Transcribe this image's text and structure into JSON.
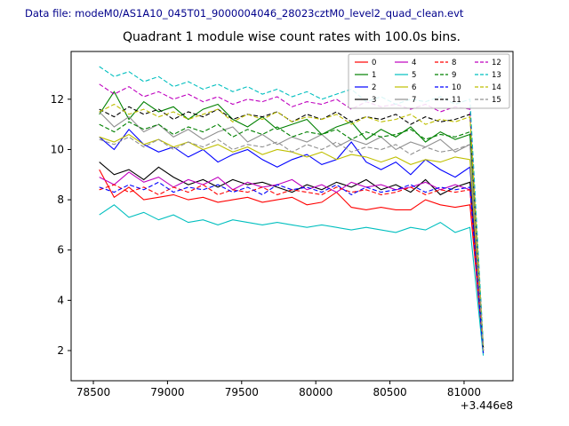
{
  "header": {
    "text": "Data file: modeM0/AS1A10_045T01_9000004046_28023cztM0_level2_quad_clean.evt",
    "color": "#00008b"
  },
  "chart_data": {
    "type": "line",
    "title": "Quadrant 1 module wise count rates with 100.0s bins.",
    "xlabel": "",
    "ylabel": "",
    "x_offset_label": "+3.446e8",
    "xlim": [
      78350,
      81330
    ],
    "ylim": [
      0.8,
      13.9
    ],
    "xticks": [
      78500,
      79000,
      79500,
      80000,
      80500,
      81000
    ],
    "yticks": [
      2,
      4,
      6,
      8,
      10,
      12
    ],
    "grid": false,
    "legend": {
      "location": "upper right",
      "ncol": 4
    },
    "x": [
      78540,
      78640,
      78740,
      78840,
      78940,
      79040,
      79140,
      79240,
      79340,
      79440,
      79540,
      79640,
      79740,
      79840,
      79940,
      80040,
      80140,
      80240,
      80340,
      80440,
      80540,
      80640,
      80740,
      80840,
      80940,
      81040,
      81130
    ],
    "series": [
      {
        "name": "0",
        "color": "#ff0000",
        "dashed": false,
        "values": [
          9.2,
          8.1,
          8.5,
          8.0,
          8.1,
          8.2,
          8.0,
          8.1,
          7.9,
          8.0,
          8.1,
          7.9,
          8.0,
          8.1,
          7.8,
          7.9,
          8.3,
          7.7,
          7.6,
          7.7,
          7.6,
          7.6,
          8.0,
          7.8,
          7.7,
          7.8,
          2.0
        ]
      },
      {
        "name": "1",
        "color": "#008000",
        "dashed": false,
        "values": [
          11.4,
          12.3,
          11.2,
          11.9,
          11.5,
          11.7,
          11.2,
          11.6,
          11.8,
          11.2,
          10.9,
          11.3,
          10.8,
          11.0,
          11.2,
          10.6,
          10.9,
          11.1,
          10.4,
          10.8,
          10.5,
          10.9,
          10.3,
          10.7,
          10.4,
          10.6,
          2.1
        ]
      },
      {
        "name": "2",
        "color": "#0000ff",
        "dashed": false,
        "values": [
          10.5,
          10.0,
          10.8,
          10.2,
          9.9,
          10.1,
          9.7,
          10.0,
          9.5,
          9.8,
          10.0,
          9.6,
          9.3,
          9.6,
          9.8,
          9.4,
          9.6,
          10.3,
          9.5,
          9.2,
          9.5,
          9.0,
          9.6,
          9.2,
          8.9,
          9.3,
          2.0
        ]
      },
      {
        "name": "3",
        "color": "#000000",
        "dashed": false,
        "values": [
          9.5,
          9.0,
          9.2,
          8.8,
          9.3,
          8.9,
          8.6,
          8.8,
          8.5,
          8.8,
          8.6,
          8.7,
          8.5,
          8.3,
          8.6,
          8.4,
          8.7,
          8.5,
          8.8,
          8.4,
          8.6,
          8.3,
          8.8,
          8.2,
          8.5,
          8.7,
          1.9
        ]
      },
      {
        "name": "4",
        "color": "#bf00bf",
        "dashed": false,
        "values": [
          8.9,
          8.6,
          9.1,
          8.7,
          8.9,
          8.5,
          8.8,
          8.6,
          8.9,
          8.4,
          8.7,
          8.5,
          8.6,
          8.8,
          8.4,
          8.6,
          8.3,
          8.7,
          8.5,
          8.6,
          8.4,
          8.5,
          8.7,
          8.4,
          8.6,
          8.4,
          2.0
        ]
      },
      {
        "name": "5",
        "color": "#00bfbf",
        "dashed": false,
        "values": [
          7.4,
          7.8,
          7.3,
          7.5,
          7.2,
          7.4,
          7.1,
          7.2,
          7.0,
          7.2,
          7.1,
          7.0,
          7.1,
          7.0,
          6.9,
          7.0,
          6.9,
          6.8,
          6.9,
          6.8,
          6.7,
          6.9,
          6.8,
          7.1,
          6.7,
          6.9,
          1.8
        ]
      },
      {
        "name": "6",
        "color": "#bfbf00",
        "dashed": false,
        "values": [
          10.5,
          10.3,
          10.6,
          10.2,
          10.4,
          10.1,
          10.3,
          10.0,
          10.2,
          9.9,
          10.1,
          9.8,
          10.0,
          9.9,
          9.7,
          9.9,
          9.6,
          9.8,
          9.7,
          9.5,
          9.7,
          9.4,
          9.6,
          9.5,
          9.7,
          9.6,
          2.0
        ]
      },
      {
        "name": "7",
        "color": "#909090",
        "dashed": false,
        "values": [
          11.5,
          10.9,
          11.3,
          10.7,
          11.0,
          10.5,
          10.8,
          10.4,
          10.7,
          10.9,
          10.3,
          10.6,
          10.2,
          10.5,
          10.3,
          10.6,
          10.1,
          10.4,
          10.2,
          10.5,
          10.0,
          10.3,
          10.1,
          10.4,
          9.9,
          10.2,
          2.1
        ]
      },
      {
        "name": "8",
        "color": "#ff0000",
        "dashed": true,
        "values": [
          8.4,
          8.6,
          8.3,
          8.5,
          8.2,
          8.5,
          8.3,
          8.6,
          8.2,
          8.4,
          8.3,
          8.5,
          8.2,
          8.4,
          8.3,
          8.2,
          8.5,
          8.3,
          8.4,
          8.2,
          8.3,
          8.5,
          8.2,
          8.4,
          8.3,
          8.4,
          2.0
        ]
      },
      {
        "name": "9",
        "color": "#008000",
        "dashed": true,
        "values": [
          11.0,
          10.7,
          11.1,
          10.8,
          11.0,
          10.6,
          10.9,
          10.7,
          11.0,
          10.5,
          10.8,
          10.6,
          10.9,
          10.5,
          10.7,
          10.6,
          10.8,
          10.4,
          10.7,
          10.5,
          10.6,
          10.8,
          10.4,
          10.6,
          10.5,
          10.7,
          2.0
        ]
      },
      {
        "name": "10",
        "color": "#0000ff",
        "dashed": true,
        "values": [
          8.5,
          8.3,
          8.6,
          8.4,
          8.7,
          8.3,
          8.5,
          8.4,
          8.6,
          8.3,
          8.5,
          8.2,
          8.6,
          8.4,
          8.5,
          8.3,
          8.6,
          8.2,
          8.5,
          8.3,
          8.4,
          8.6,
          8.3,
          8.5,
          8.4,
          8.5,
          1.9
        ]
      },
      {
        "name": "11",
        "color": "#000000",
        "dashed": true,
        "values": [
          11.6,
          11.3,
          11.7,
          11.4,
          11.6,
          11.2,
          11.5,
          11.3,
          11.6,
          11.2,
          11.4,
          11.3,
          11.5,
          11.1,
          11.4,
          11.2,
          11.5,
          11.1,
          11.3,
          11.2,
          11.4,
          11.0,
          11.3,
          11.1,
          11.2,
          11.4,
          2.1
        ]
      },
      {
        "name": "12",
        "color": "#bf00bf",
        "dashed": true,
        "values": [
          12.6,
          12.2,
          12.5,
          12.1,
          12.3,
          12.0,
          12.2,
          11.9,
          12.1,
          11.8,
          12.0,
          11.9,
          12.1,
          11.7,
          11.9,
          11.8,
          12.0,
          11.6,
          11.9,
          11.7,
          11.8,
          11.6,
          11.8,
          11.5,
          11.7,
          11.6,
          2.2
        ]
      },
      {
        "name": "13",
        "color": "#00bfbf",
        "dashed": true,
        "values": [
          13.3,
          12.9,
          13.1,
          12.7,
          12.9,
          12.5,
          12.7,
          12.4,
          12.6,
          12.3,
          12.5,
          12.2,
          12.4,
          12.1,
          12.3,
          12.0,
          12.2,
          12.4,
          11.9,
          12.1,
          11.8,
          12.0,
          11.9,
          12.1,
          11.8,
          12.0,
          2.2
        ]
      },
      {
        "name": "14",
        "color": "#bfbf00",
        "dashed": true,
        "values": [
          11.5,
          11.8,
          11.4,
          11.6,
          11.3,
          11.5,
          11.2,
          11.4,
          11.6,
          11.1,
          11.4,
          11.2,
          11.5,
          11.1,
          11.3,
          11.2,
          11.4,
          11.0,
          11.3,
          11.1,
          11.2,
          11.4,
          11.0,
          11.2,
          11.1,
          11.3,
          2.1
        ]
      },
      {
        "name": "15",
        "color": "#909090",
        "dashed": true,
        "values": [
          10.4,
          10.2,
          10.5,
          10.1,
          10.4,
          10.0,
          10.3,
          10.1,
          10.4,
          10.0,
          10.2,
          10.1,
          10.3,
          9.9,
          10.2,
          10.0,
          10.3,
          9.9,
          10.1,
          10.0,
          10.2,
          9.8,
          10.1,
          9.9,
          10.0,
          10.2,
          2.0
        ]
      }
    ]
  }
}
